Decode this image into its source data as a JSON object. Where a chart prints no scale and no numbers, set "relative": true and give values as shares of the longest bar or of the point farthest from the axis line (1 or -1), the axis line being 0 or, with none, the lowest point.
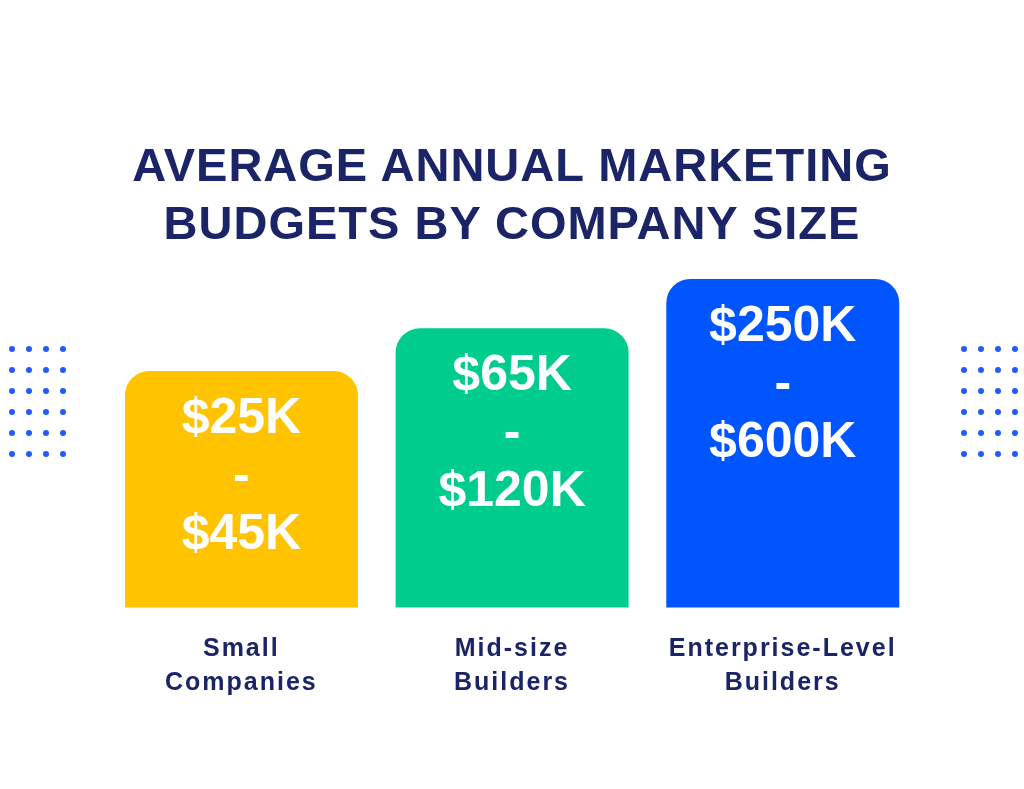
{
  "chart_data": {
    "type": "bar",
    "title": "AVERAGE ANNUAL MARKETING BUDGETS BY COMPANY SIZE",
    "categories": [
      "Small Companies",
      "Mid-size Builders",
      "Enterprise-Level Builders"
    ],
    "relative": true,
    "values": [
      0.72,
      0.85,
      1
    ],
    "colors": [
      "#ffc300",
      "#00cc8e",
      "#0055ff"
    ],
    "annotations": [
      "$25K - $45K",
      "$65K - $120K",
      "$250K - $600K"
    ]
  }
}
